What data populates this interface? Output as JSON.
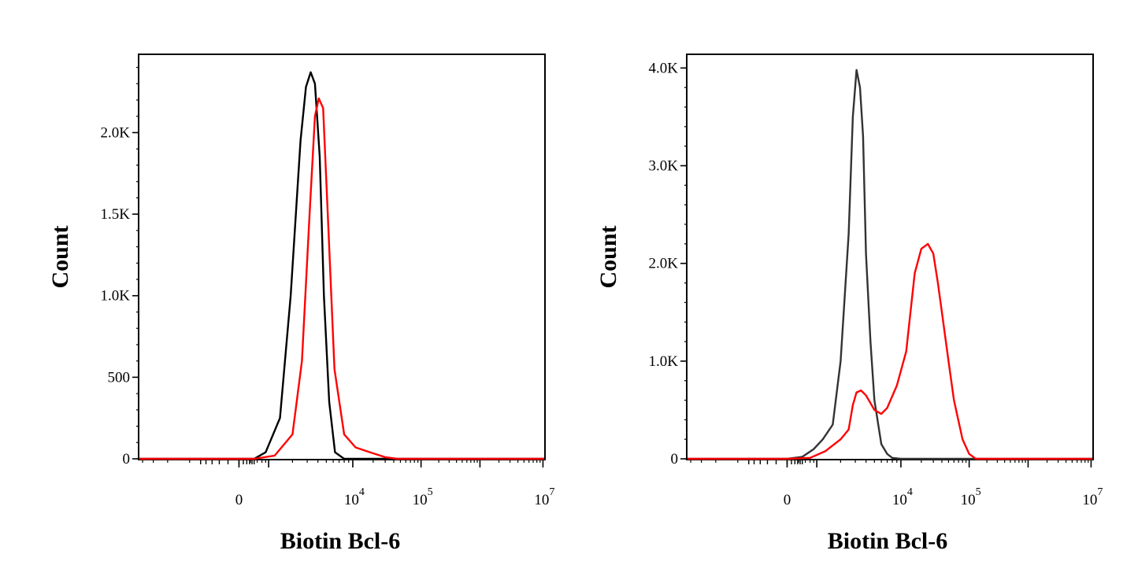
{
  "chart_data": [
    {
      "type": "line",
      "title": "",
      "xlabel": "Biotin Bcl-6",
      "ylabel": "Count",
      "x_scale": "biexponential",
      "x_ticks": [
        {
          "value": 0,
          "base": "0",
          "exp": ""
        },
        {
          "value": 10000,
          "base": "10",
          "exp": "4"
        },
        {
          "value": 100000,
          "base": "10",
          "exp": "5"
        },
        {
          "value": 10000000,
          "base": "10",
          "exp": "7"
        }
      ],
      "y_ticks": [
        {
          "value": 0,
          "label": "0"
        },
        {
          "value": 500,
          "label": "500"
        },
        {
          "value": 1000,
          "label": "1.0K"
        },
        {
          "value": 1500,
          "label": "1.5K"
        },
        {
          "value": 2000,
          "label": "2.0K"
        }
      ],
      "ylim": [
        0,
        2480
      ],
      "grid": false,
      "series": [
        {
          "color": "#000000",
          "x": [
            300,
            800,
            1400,
            1900,
            2500,
            2900,
            3300,
            3700,
            4200,
            4700,
            5400,
            6300,
            8000
          ],
          "y": [
            0,
            40,
            250,
            1000,
            1950,
            2280,
            2370,
            2300,
            1850,
            1000,
            350,
            40,
            0
          ]
        },
        {
          "color": "#ff0000",
          "x": [
            300,
            1200,
            2000,
            2600,
            3200,
            3700,
            4100,
            4600,
            5200,
            6200,
            8000,
            11000,
            18000,
            30000,
            45000
          ],
          "y": [
            0,
            20,
            150,
            600,
            1500,
            2100,
            2210,
            2150,
            1500,
            550,
            150,
            70,
            40,
            10,
            0
          ]
        }
      ]
    },
    {
      "type": "line",
      "title": "",
      "xlabel": "Biotin Bcl-6",
      "ylabel": "Count",
      "x_scale": "biexponential",
      "x_ticks": [
        {
          "value": 0,
          "base": "0",
          "exp": ""
        },
        {
          "value": 10000,
          "base": "10",
          "exp": "4"
        },
        {
          "value": 100000,
          "base": "10",
          "exp": "5"
        },
        {
          "value": 10000000,
          "base": "10",
          "exp": "7"
        }
      ],
      "y_ticks": [
        {
          "value": 0,
          "label": "0"
        },
        {
          "value": 1000,
          "label": "1.0K"
        },
        {
          "value": 2000,
          "label": "2.0K"
        },
        {
          "value": 3000,
          "label": "3.0K"
        },
        {
          "value": 4000,
          "label": "4.0K"
        }
      ],
      "ylim": [
        0,
        4140
      ],
      "grid": false,
      "series": [
        {
          "color": "#333333",
          "x": [
            0,
            300,
            800,
            1200,
            1600,
            2000,
            2500,
            2800,
            3100,
            3400,
            3700,
            4000,
            4500,
            5000,
            6000,
            7000,
            8000,
            10000
          ],
          "y": [
            0,
            20,
            100,
            200,
            350,
            1000,
            2300,
            3500,
            3980,
            3800,
            3300,
            2100,
            1200,
            600,
            150,
            50,
            10,
            0
          ]
        },
        {
          "color": "#ff0000",
          "x": [
            0,
            600,
            1300,
            2000,
            2500,
            2800,
            3100,
            3500,
            4000,
            5000,
            6000,
            7000,
            9000,
            12000,
            16000,
            20000,
            25000,
            30000,
            35000,
            40000,
            50000,
            60000,
            80000,
            100000,
            130000
          ],
          "y": [
            0,
            10,
            80,
            200,
            300,
            550,
            680,
            700,
            650,
            500,
            460,
            520,
            750,
            1100,
            1900,
            2150,
            2200,
            2100,
            1800,
            1500,
            1000,
            600,
            200,
            50,
            0
          ]
        }
      ]
    }
  ]
}
